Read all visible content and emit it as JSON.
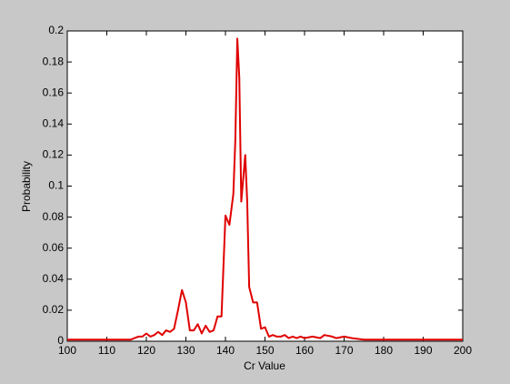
{
  "chart_data": {
    "type": "line",
    "xlabel": "Cr Value",
    "ylabel": "Probability",
    "x": [
      100,
      105,
      110,
      116,
      117,
      118,
      119,
      120,
      121,
      122,
      123,
      124,
      125,
      126,
      127,
      128,
      129,
      130,
      131,
      132,
      133,
      134,
      135,
      136,
      137,
      138,
      139,
      140,
      141,
      142,
      142.5,
      143,
      143.5,
      144,
      145,
      145.5,
      146,
      147,
      148,
      149,
      150,
      151,
      152,
      153,
      154,
      155,
      156,
      157,
      158,
      159,
      160,
      162,
      164,
      165,
      167,
      168,
      170,
      172,
      175,
      180,
      190,
      200
    ],
    "series": [
      {
        "name": "Probability",
        "color": "#e00000",
        "values": [
          0.001,
          0.001,
          0.001,
          0.001,
          0.002,
          0.003,
          0.003,
          0.005,
          0.003,
          0.004,
          0.006,
          0.004,
          0.007,
          0.006,
          0.008,
          0.02,
          0.033,
          0.025,
          0.007,
          0.007,
          0.011,
          0.005,
          0.01,
          0.006,
          0.007,
          0.016,
          0.016,
          0.081,
          0.075,
          0.095,
          0.13,
          0.195,
          0.17,
          0.09,
          0.12,
          0.09,
          0.035,
          0.025,
          0.025,
          0.008,
          0.009,
          0.003,
          0.004,
          0.003,
          0.003,
          0.004,
          0.002,
          0.003,
          0.002,
          0.003,
          0.002,
          0.003,
          0.002,
          0.004,
          0.003,
          0.002,
          0.003,
          0.002,
          0.001,
          0.001,
          0.001,
          0.001
        ]
      }
    ],
    "xlim": [
      100,
      200
    ],
    "xticks": [
      100,
      110,
      120,
      130,
      140,
      150,
      160,
      170,
      180,
      190,
      200
    ],
    "ylim": [
      0,
      0.2
    ],
    "yticks": [
      0,
      0.02,
      0.04,
      0.06,
      0.08,
      0.1,
      0.12,
      0.14,
      0.16,
      0.18,
      0.2
    ],
    "grid": false
  }
}
